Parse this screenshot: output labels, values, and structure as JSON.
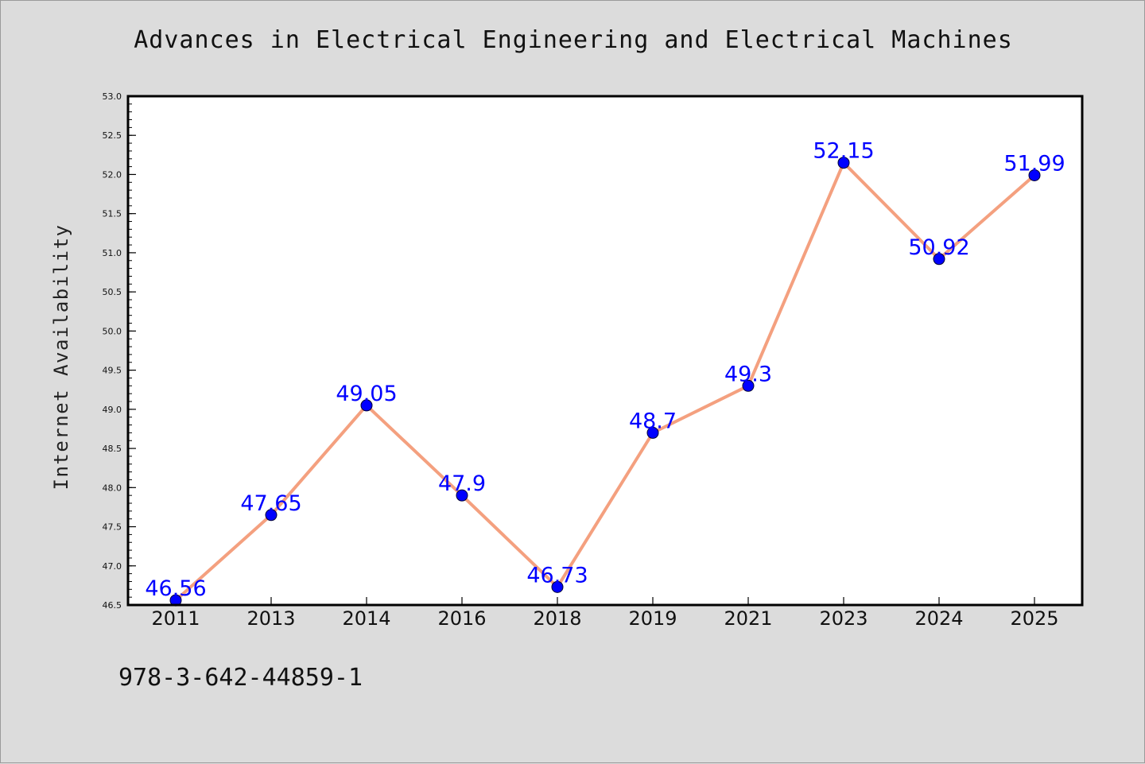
{
  "chart_data": {
    "type": "line",
    "title": "Advances in Electrical Engineering and Electrical Machines",
    "xlabel": "",
    "ylabel": "Internet Availability",
    "categories": [
      "2011",
      "2013",
      "2014",
      "2016",
      "2018",
      "2019",
      "2021",
      "2023",
      "2024",
      "2025"
    ],
    "series": [
      {
        "values": [
          46.56,
          47.65,
          49.05,
          47.9,
          46.73,
          48.7,
          49.3,
          52.15,
          50.92,
          51.99
        ],
        "labels": [
          "46.56",
          "47.65",
          "49.05",
          "47.9",
          "46.73",
          "48.7",
          "49.3",
          "52.15",
          "50.92",
          "51.99"
        ]
      }
    ],
    "ylim": [
      46.5,
      53.0
    ],
    "yticks": [
      "46.5",
      "47.0",
      "47.5",
      "48.0",
      "48.5",
      "49.0",
      "49.5",
      "50.0",
      "50.5",
      "51.0",
      "51.5",
      "52.0",
      "52.5",
      "53.0"
    ],
    "grid": false,
    "legend": "none",
    "colors": {
      "line": "#f4a07f",
      "marker": "#0000ff",
      "data_label": "#0000ff",
      "background": "#dcdcdc",
      "plot_background": "#ffffff"
    }
  },
  "footer_text": "978-3-642-44859-1"
}
